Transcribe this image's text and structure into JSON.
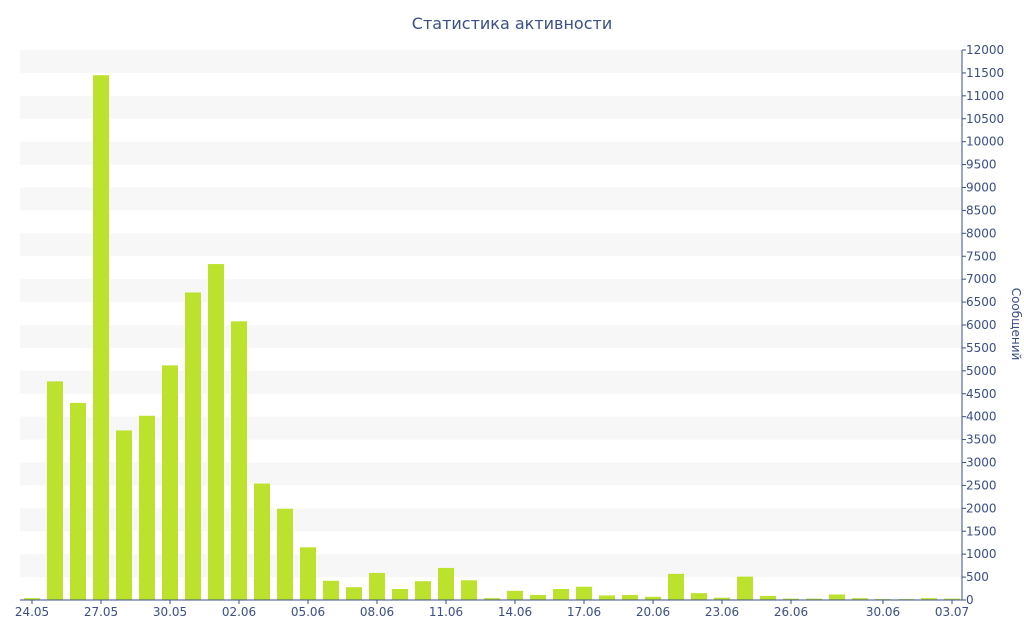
{
  "chart_data": {
    "type": "bar",
    "title": "Статистика активности",
    "ylabel": "Сообщений",
    "xlabel": "",
    "ylim": [
      0,
      12000
    ],
    "y_ticks": [
      0,
      500,
      1000,
      1500,
      2000,
      2500,
      3000,
      3500,
      4000,
      4500,
      5000,
      5500,
      6000,
      6500,
      7000,
      7500,
      8000,
      8500,
      9000,
      9500,
      10000,
      10500,
      11000,
      11500,
      12000
    ],
    "y_axis_position": "right",
    "grid": "alternating horizontal bands",
    "bar_color": "#bde22e",
    "band_color": "#f7f7f7",
    "text_color": "#3b4e86",
    "categories": [
      "24.05",
      "25.05",
      "26.05",
      "27.05",
      "28.05",
      "29.05",
      "30.05",
      "31.05",
      "01.06",
      "02.06",
      "03.06",
      "04.06",
      "05.06",
      "06.06",
      "07.06",
      "08.06",
      "09.06",
      "10.06",
      "11.06",
      "12.06",
      "13.06",
      "14.06",
      "15.06",
      "16.06",
      "17.06",
      "18.06",
      "19.06",
      "20.06",
      "21.06",
      "22.06",
      "23.06",
      "24.06",
      "25.06",
      "26.06",
      "27.06",
      "28.06",
      "29.06",
      "30.06",
      "01.07",
      "02.07",
      "03.07"
    ],
    "x_tick_labels": [
      "24.05",
      "27.05",
      "30.05",
      "02.06",
      "05.06",
      "08.06",
      "11.06",
      "14.06",
      "17.06",
      "20.06",
      "23.06",
      "26.06",
      "30.06",
      "03.07"
    ],
    "values": [
      40,
      4770,
      4300,
      11450,
      3700,
      4020,
      5120,
      6710,
      7330,
      6080,
      2540,
      1990,
      1150,
      420,
      280,
      590,
      240,
      410,
      700,
      430,
      40,
      200,
      110,
      240,
      290,
      100,
      110,
      70,
      570,
      150,
      50,
      510,
      90,
      30,
      30,
      120,
      40,
      20,
      20,
      40,
      30
    ]
  }
}
